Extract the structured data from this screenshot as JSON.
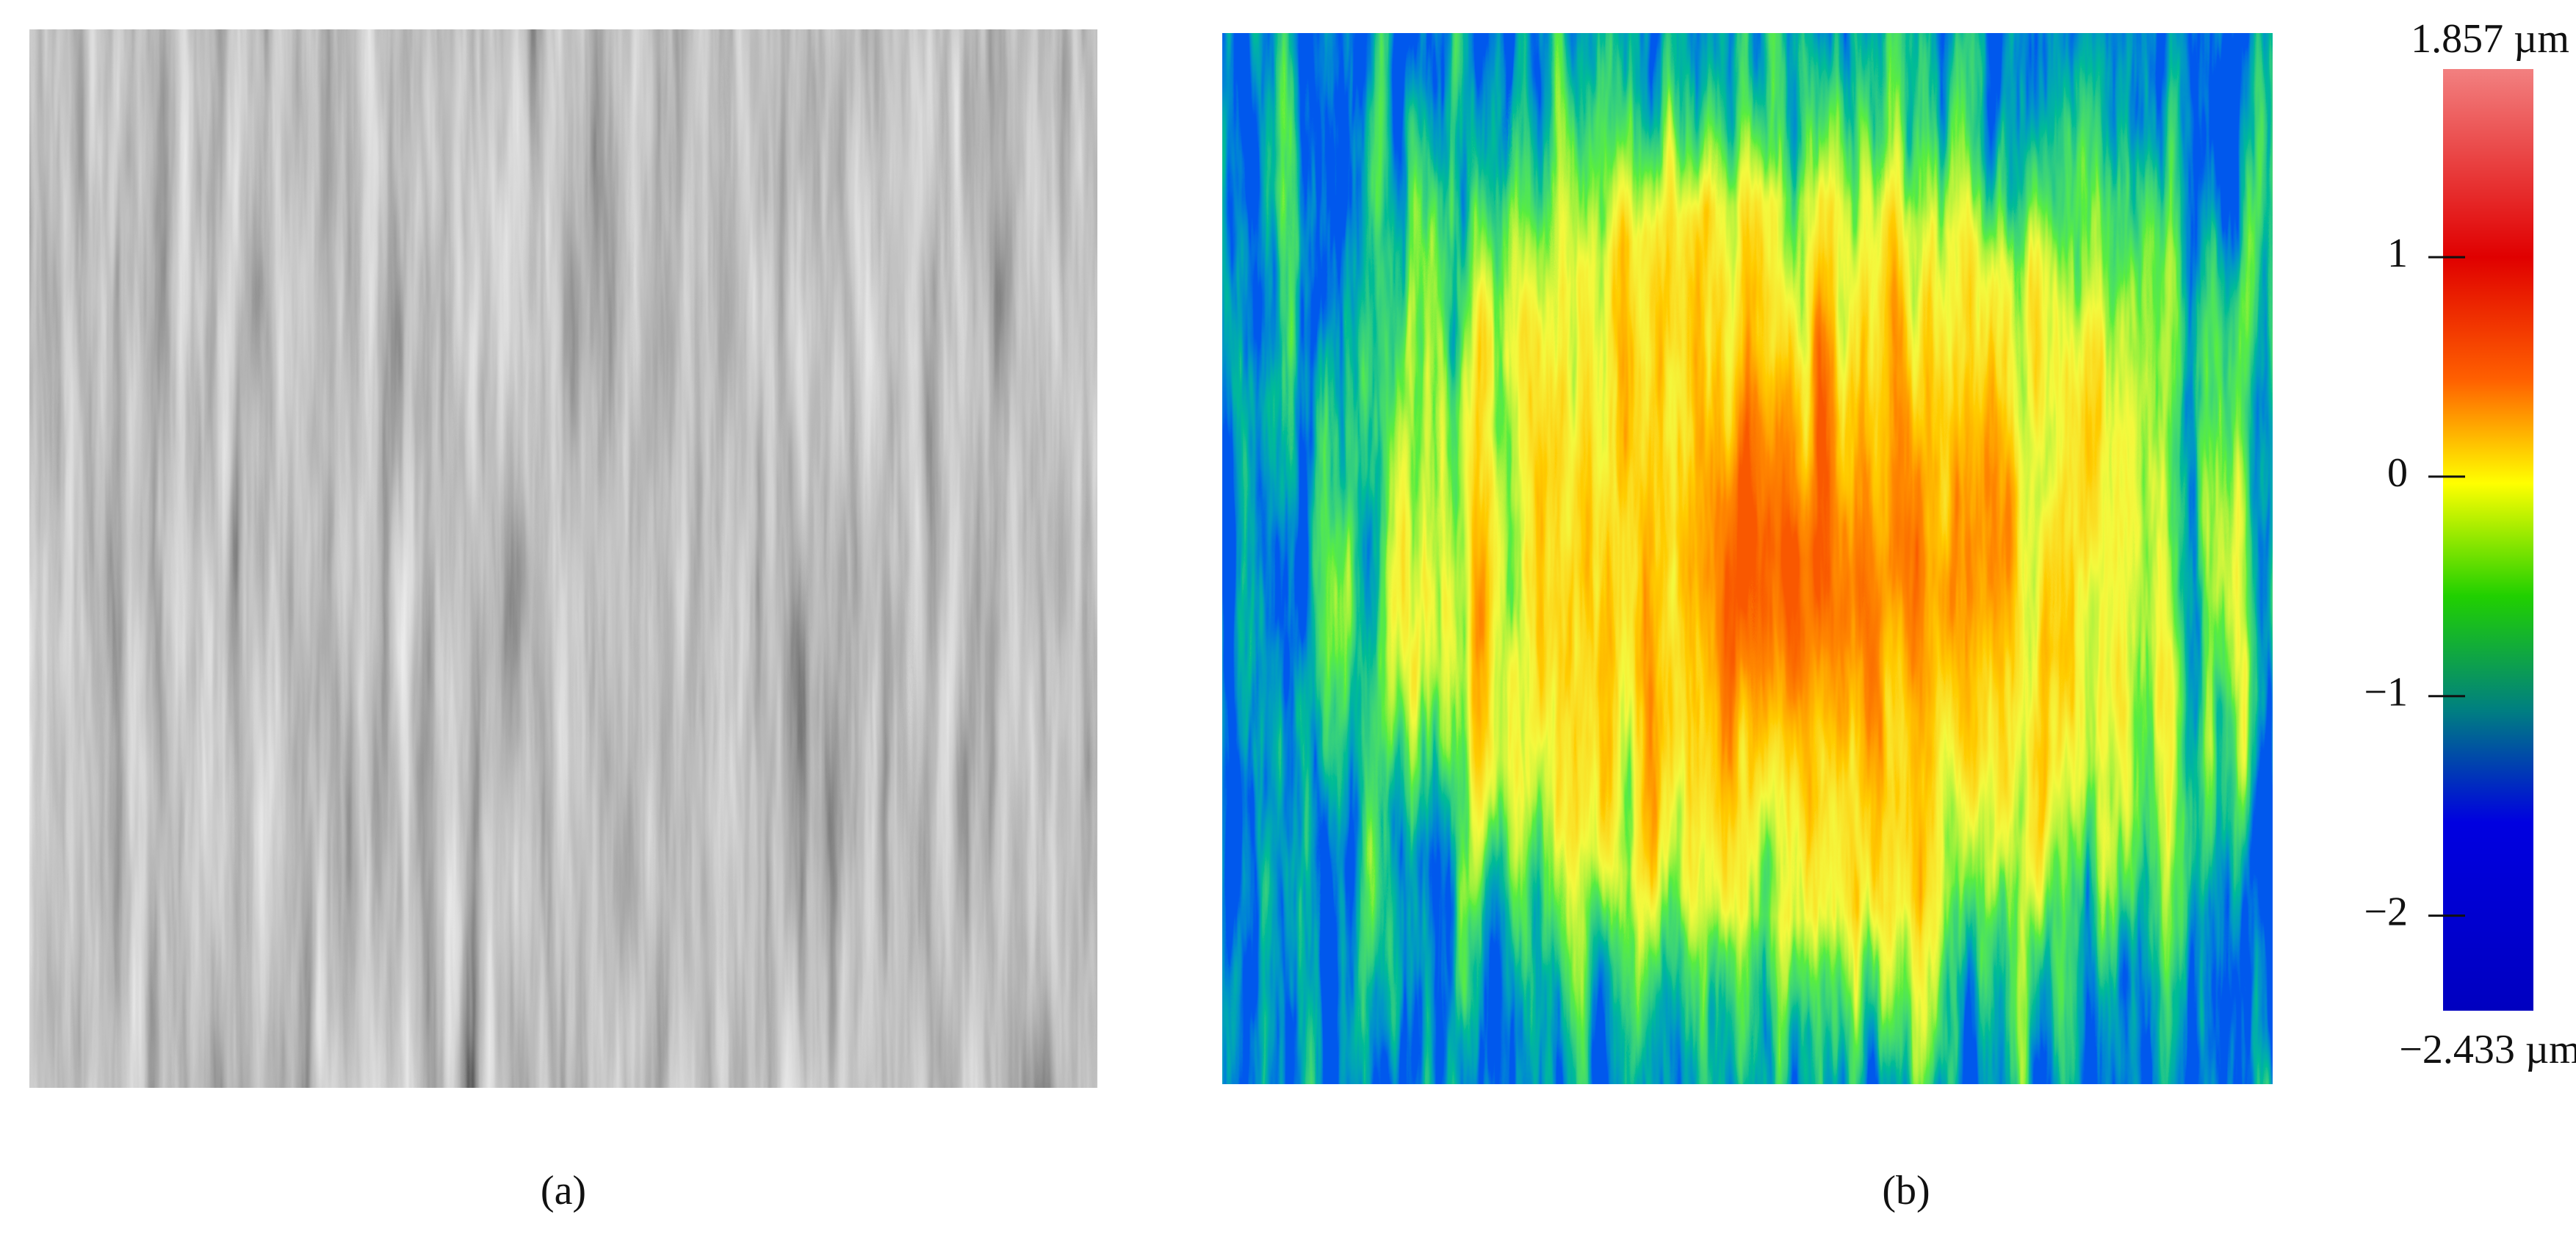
{
  "panels": [
    {
      "label": "(a)"
    },
    {
      "label": "(b)"
    }
  ],
  "colorbar": {
    "lim": [
      -2.433,
      1.857
    ],
    "ticks": [
      {
        "value": 1.857,
        "label": "1.857 µm"
      },
      1,
      0,
      {
        "value": -1,
        "label": "−1"
      },
      {
        "value": -2,
        "label": "−2"
      },
      {
        "value": -2.433,
        "label": "−2.433 µm"
      }
    ]
  }
}
